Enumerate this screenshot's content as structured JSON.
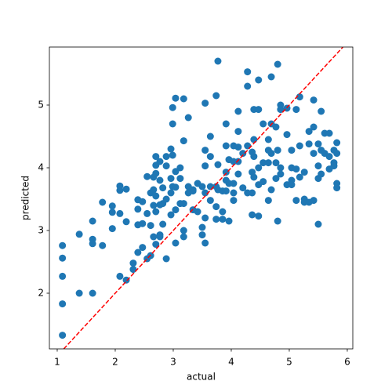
{
  "chart_data": {
    "type": "scatter",
    "xlabel": "actual",
    "ylabel": "predicted",
    "color": "#1f77b4",
    "xlim": [
      0.865,
      6.095
    ],
    "ylim": [
      1.1125,
      5.925
    ],
    "xticks": [
      1,
      2,
      3,
      4,
      5,
      6
    ],
    "yticks": [
      2,
      3,
      4,
      5
    ],
    "identity_line": {
      "color": "red",
      "dashed": true
    },
    "x": [
      1.09,
      1.09,
      1.09,
      1.09,
      1.09,
      1.38,
      1.38,
      1.61,
      1.61,
      1.61,
      1.61,
      1.78,
      1.78,
      1.95,
      1.95,
      1.95,
      2.08,
      2.08,
      2.08,
      2.08,
      2.19,
      2.19,
      2.19,
      2.31,
      2.31,
      2.39,
      2.39,
      2.39,
      2.39,
      2.47,
      2.47,
      2.47,
      2.55,
      2.55,
      2.55,
      2.61,
      2.61,
      2.61,
      2.66,
      2.66,
      2.66,
      2.66,
      2.7,
      2.7,
      2.7,
      2.7,
      2.7,
      2.7,
      2.77,
      2.77,
      2.77,
      2.77,
      2.77,
      2.82,
      2.82,
      2.82,
      2.88,
      2.88,
      2.88,
      2.88,
      2.96,
      2.96,
      2.96,
      2.96,
      2.99,
      2.99,
      2.99,
      2.99,
      3.04,
      3.04,
      3.04,
      3.04,
      3.04,
      3.12,
      3.12,
      3.12,
      3.18,
      3.18,
      3.18,
      3.18,
      3.18,
      3.26,
      3.26,
      3.26,
      3.34,
      3.34,
      3.34,
      3.42,
      3.42,
      3.5,
      3.5,
      3.5,
      3.55,
      3.55,
      3.55,
      3.55,
      3.55,
      3.55,
      3.64,
      3.64,
      3.64,
      3.64,
      3.74,
      3.74,
      3.74,
      3.74,
      3.77,
      3.77,
      3.77,
      3.85,
      3.85,
      3.85,
      3.91,
      3.91,
      3.91,
      3.91,
      3.91,
      3.96,
      3.96,
      3.96,
      4.04,
      4.04,
      4.04,
      4.04,
      4.04,
      4.12,
      4.12,
      4.12,
      4.12,
      4.12,
      4.2,
      4.2,
      4.28,
      4.28,
      4.28,
      4.28,
      4.36,
      4.36,
      4.36,
      4.36,
      4.39,
      4.39,
      4.39,
      4.39,
      4.47,
      4.47,
      4.47,
      4.47,
      4.47,
      4.55,
      4.55,
      4.55,
      4.64,
      4.64,
      4.64,
      4.64,
      4.69,
      4.69,
      4.69,
      4.69,
      4.77,
      4.77,
      4.77,
      4.8,
      4.8,
      4.8,
      4.85,
      4.85,
      4.85,
      4.85,
      4.96,
      4.96,
      4.96,
      5.04,
      5.04,
      5.04,
      5.04,
      5.12,
      5.12,
      5.12,
      5.18,
      5.18,
      5.18,
      5.26,
      5.26,
      5.26,
      5.34,
      5.34,
      5.34,
      5.42,
      5.42,
      5.42,
      5.42,
      5.5,
      5.5,
      5.5,
      5.5,
      5.55,
      5.55,
      5.55,
      5.61,
      5.61,
      5.69,
      5.69,
      5.69,
      5.77,
      5.77,
      5.77,
      5.82,
      5.82,
      5.82,
      5.82
    ],
    "y": [
      2.76,
      2.56,
      2.27,
      1.83,
      1.33,
      2.94,
      2.0,
      3.15,
      2.86,
      2.79,
      2.0,
      2.76,
      3.45,
      3.03,
      3.29,
      3.39,
      3.71,
      3.64,
      3.27,
      2.27,
      3.66,
      3.14,
      2.21,
      2.48,
      2.38,
      3.49,
      3.34,
      3.09,
      2.65,
      3.46,
      3.11,
      2.73,
      3.86,
      3.27,
      2.55,
      3.6,
      3.08,
      2.6,
      3.85,
      3.65,
      3.4,
      2.9,
      4.18,
      4.04,
      3.91,
      3.55,
      3.3,
      2.78,
      4.1,
      3.8,
      3.41,
      2.93,
      2.9,
      3.68,
      3.43,
      3.1,
      4.18,
      4.03,
      3.5,
      2.55,
      4.3,
      3.83,
      3.6,
      3.25,
      4.7,
      4.96,
      4.2,
      3.7,
      5.11,
      3.94,
      3.69,
      3.33,
      2.8,
      4.0,
      3.83,
      3.43,
      5.1,
      4.43,
      3.43,
      3.0,
      2.9,
      4.8,
      3.7,
      3.6,
      3.65,
      3.63,
      3.33,
      3.75,
      3.3,
      3.7,
      3.05,
      2.93,
      5.03,
      4.28,
      4.03,
      3.6,
      3.2,
      2.8,
      4.5,
      4.18,
      3.7,
      3.48,
      5.15,
      3.7,
      3.38,
      3.18,
      5.7,
      4.05,
      3.65,
      3.63,
      3.3,
      3.18,
      4.7,
      4.35,
      3.93,
      3.8,
      3.63,
      4.13,
      3.75,
      3.15,
      4.35,
      4.1,
      3.75,
      3.6,
      3.48,
      4.9,
      4.58,
      4.33,
      4.1,
      3.9,
      4.23,
      3.68,
      5.53,
      5.3,
      4.35,
      3.6,
      4.25,
      3.93,
      3.6,
      3.25,
      4.93,
      4.45,
      4.18,
      3.85,
      5.4,
      4.93,
      4.0,
      3.73,
      3.23,
      4.7,
      4.08,
      3.78,
      4.45,
      4.28,
      4.08,
      3.48,
      5.45,
      4.7,
      4.23,
      3.65,
      4.65,
      4.08,
      3.83,
      5.65,
      3.15,
      4.28,
      5.0,
      4.93,
      4.0,
      3.9,
      4.95,
      4.53,
      3.73,
      4.0,
      4.28,
      3.8,
      3.73,
      4.93,
      3.98,
      3.48,
      5.13,
      4.35,
      3.85,
      3.93,
      3.5,
      3.45,
      4.58,
      4.38,
      3.45,
      5.08,
      4.65,
      4.23,
      3.48,
      4.38,
      4.03,
      3.83,
      3.1,
      4.28,
      3.9,
      4.9,
      4.55,
      4.23,
      4.55,
      4.18,
      3.98,
      4.28,
      4.08,
      4.03,
      4.4,
      4.23,
      3.75,
      3.68
    ]
  }
}
